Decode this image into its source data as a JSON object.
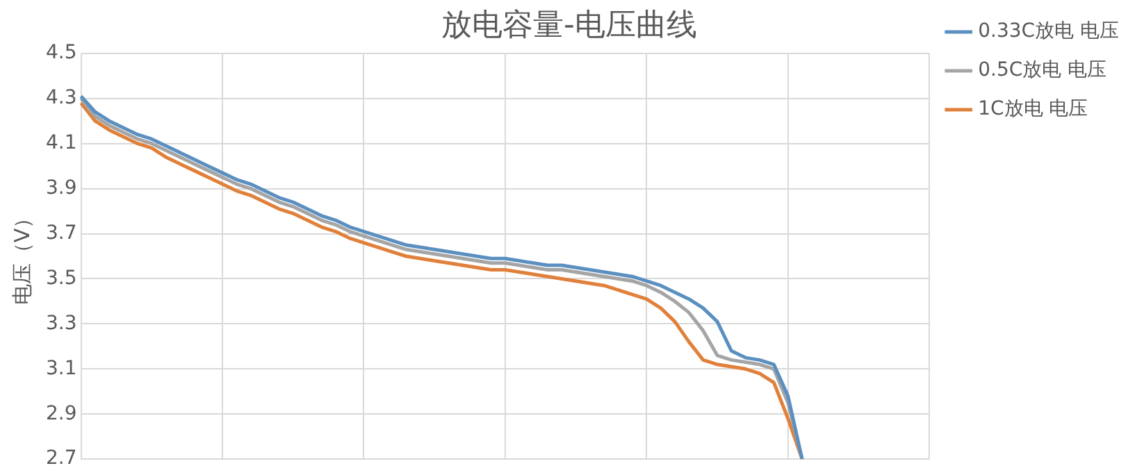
{
  "chart_data": {
    "type": "line",
    "title": "放电容量-电压曲线",
    "ylabel": "电压（V）",
    "categories": [
      null,
      null,
      null,
      null,
      null,
      null,
      null,
      null,
      null,
      null,
      null,
      null,
      null,
      null,
      null,
      null,
      null,
      null,
      null,
      null,
      null,
      null,
      null,
      null,
      null,
      null,
      null,
      null,
      null,
      null,
      null,
      null,
      null,
      null,
      null,
      null,
      null,
      null,
      null,
      null,
      null,
      null,
      null,
      null,
      null,
      null,
      null,
      null,
      null,
      null,
      null,
      null,
      null,
      null,
      null,
      null,
      null,
      null,
      null,
      null,
      null
    ],
    "series": [
      {
        "name": "0.33C放电 电压",
        "color": "#5b8fc0",
        "values": [
          4.31,
          4.24,
          4.2,
          4.17,
          4.14,
          4.12,
          4.09,
          4.06,
          4.03,
          4.0,
          3.97,
          3.94,
          3.92,
          3.89,
          3.86,
          3.84,
          3.81,
          3.78,
          3.76,
          3.73,
          3.71,
          3.69,
          3.67,
          3.65,
          3.64,
          3.63,
          3.62,
          3.61,
          3.6,
          3.59,
          3.59,
          3.58,
          3.57,
          3.56,
          3.56,
          3.55,
          3.54,
          3.53,
          3.52,
          3.51,
          3.49,
          3.47,
          3.44,
          3.41,
          3.37,
          3.31,
          3.18,
          3.15,
          3.14,
          3.12,
          2.98,
          2.7,
          null,
          null,
          null,
          null,
          null,
          null,
          null,
          null,
          null
        ]
      },
      {
        "name": "0.5C放电 电压",
        "color": "#a5a5a5",
        "values": [
          4.3,
          4.22,
          4.18,
          4.15,
          4.12,
          4.1,
          4.07,
          4.04,
          4.01,
          3.98,
          3.95,
          3.92,
          3.9,
          3.87,
          3.84,
          3.82,
          3.79,
          3.76,
          3.74,
          3.71,
          3.69,
          3.67,
          3.65,
          3.63,
          3.62,
          3.61,
          3.6,
          3.59,
          3.58,
          3.57,
          3.57,
          3.56,
          3.55,
          3.54,
          3.54,
          3.53,
          3.52,
          3.51,
          3.5,
          3.49,
          3.47,
          3.44,
          3.4,
          3.35,
          3.27,
          3.16,
          3.14,
          3.13,
          3.12,
          3.1,
          2.95,
          2.7,
          null,
          null,
          null,
          null,
          null,
          null,
          null,
          null,
          null
        ]
      },
      {
        "name": "1C放电 电压",
        "color": "#e0803a",
        "values": [
          4.28,
          4.2,
          4.16,
          4.13,
          4.1,
          4.08,
          4.04,
          4.01,
          3.98,
          3.95,
          3.92,
          3.89,
          3.87,
          3.84,
          3.81,
          3.79,
          3.76,
          3.73,
          3.71,
          3.68,
          3.66,
          3.64,
          3.62,
          3.6,
          3.59,
          3.58,
          3.57,
          3.56,
          3.55,
          3.54,
          3.54,
          3.53,
          3.52,
          3.51,
          3.5,
          3.49,
          3.48,
          3.47,
          3.45,
          3.43,
          3.41,
          3.37,
          3.31,
          3.22,
          3.14,
          3.12,
          3.11,
          3.1,
          3.08,
          3.04,
          2.88,
          2.7,
          null,
          null,
          null,
          null,
          null,
          null,
          null,
          null,
          null
        ]
      }
    ],
    "ylim": [
      2.7,
      4.5
    ],
    "yticks": [
      2.7,
      2.9,
      3.1,
      3.3,
      3.5,
      3.7,
      3.9,
      4.1,
      4.3,
      4.5
    ],
    "grid": true,
    "legend": "right",
    "tick_labels": "y",
    "marker": "none",
    "line_style": "solid"
  }
}
